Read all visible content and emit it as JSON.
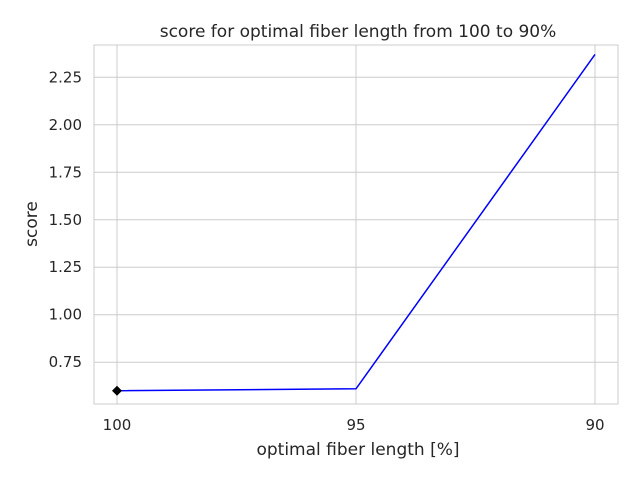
{
  "chart_data": {
    "type": "line",
    "title": "score for optimal fiber length from 100 to 90%",
    "xlabel": "optimal fiber length [%]",
    "ylabel": "score",
    "categories": [
      "100",
      "95",
      "90"
    ],
    "yticks": [
      "0.75",
      "1.00",
      "1.25",
      "1.50",
      "1.75",
      "2.00",
      "2.25"
    ],
    "ylim": [
      0.53,
      2.42
    ],
    "grid": true,
    "series": [
      {
        "values": [
          0.6,
          0.61,
          2.37
        ],
        "color": "#0000ff"
      }
    ],
    "highlight": {
      "x": "100",
      "y": 0.6,
      "marker": "diamond",
      "color": "#000000"
    }
  }
}
